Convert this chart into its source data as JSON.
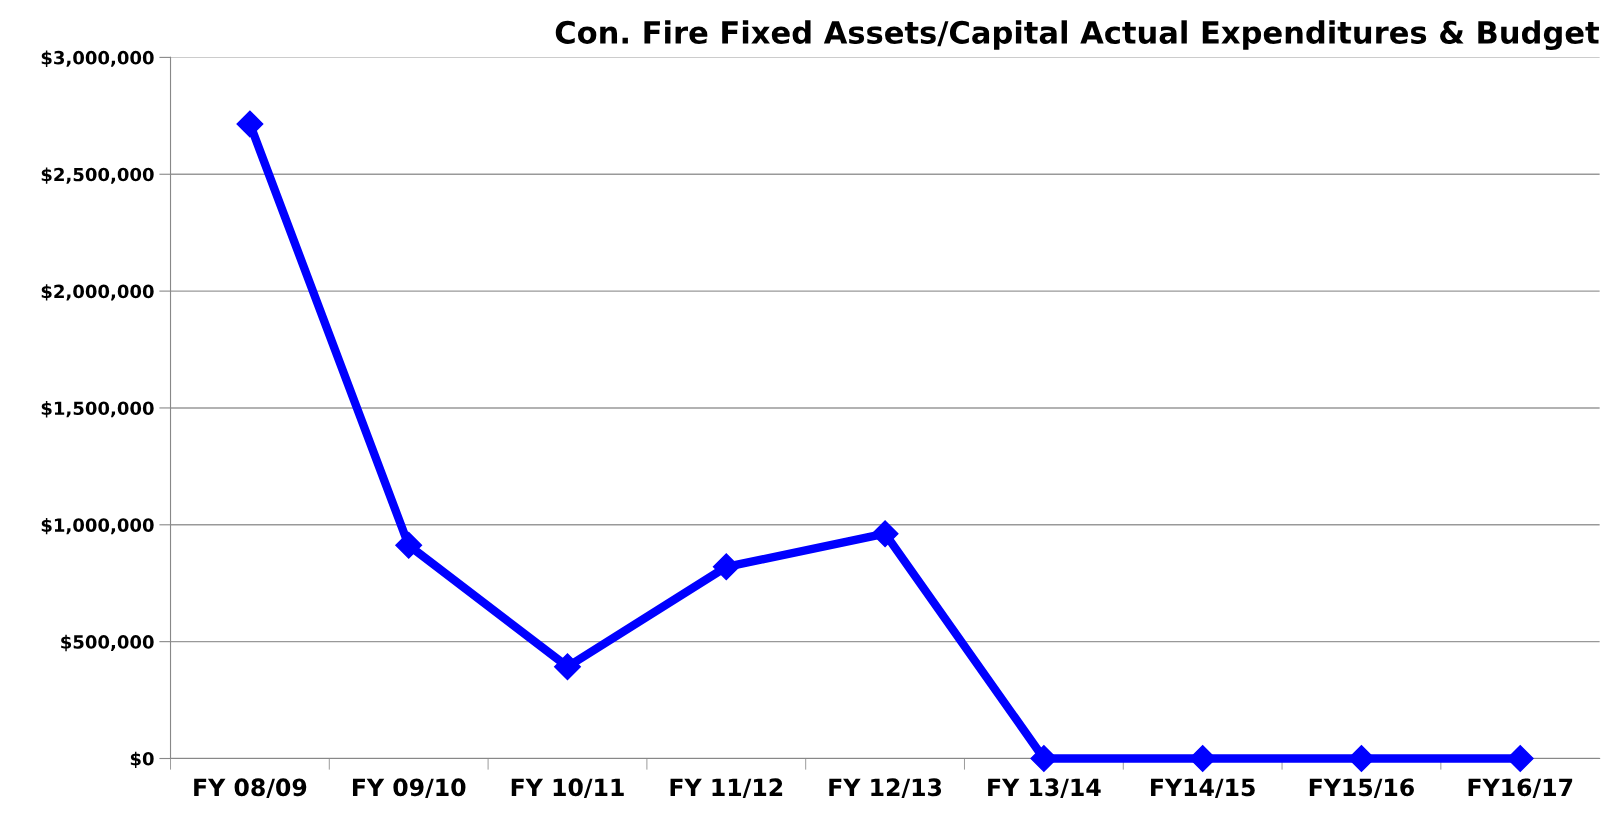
{
  "chart_data": {
    "type": "line",
    "title": "Con. Fire Fixed Assets/Capital Actual Expenditures & Budget",
    "categories": [
      "FY 08/09",
      "FY 09/10",
      "FY 10/11",
      "FY 11/12",
      "FY 12/13",
      "FY 13/14",
      "FY14/15",
      "FY15/16",
      "FY16/17"
    ],
    "series": [
      {
        "color": "#0000ff",
        "values": [
          2715000,
          912000,
          393000,
          820000,
          962000,
          0,
          0,
          0,
          0
        ]
      }
    ],
    "ylim": [
      0,
      3000000
    ],
    "yticks": [
      {
        "value": 0,
        "label": "$0"
      },
      {
        "value": 500000,
        "label": "$500,000"
      },
      {
        "value": 1000000,
        "label": "$1,000,000"
      },
      {
        "value": 1500000,
        "label": "$1,500,000"
      },
      {
        "value": 2000000,
        "label": "$2,000,000"
      },
      {
        "value": 2500000,
        "label": "$2,500,000"
      },
      {
        "value": 3000000,
        "label": "$3,000,000"
      }
    ],
    "grid": "y",
    "marker": "diamond",
    "line_style": "solid"
  }
}
